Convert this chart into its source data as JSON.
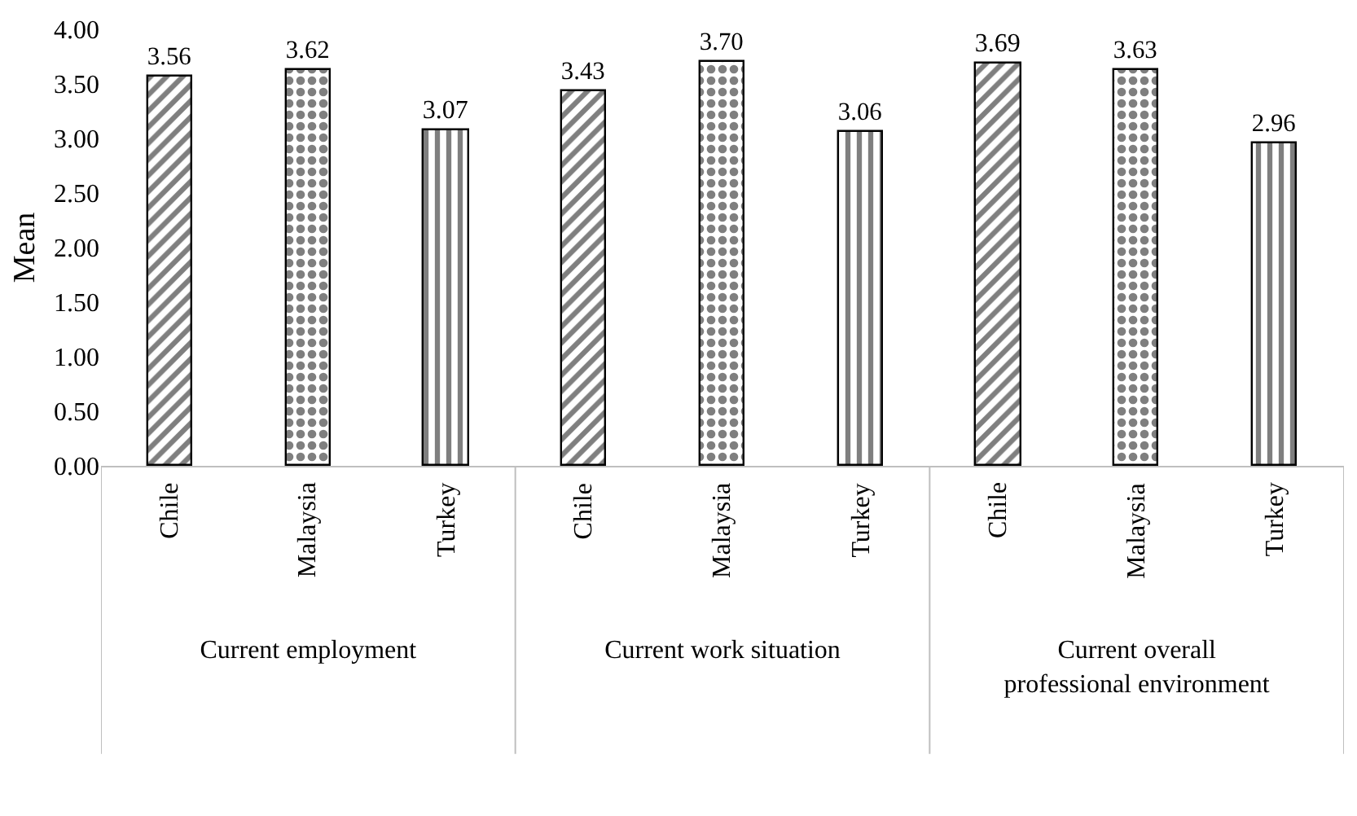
{
  "chart_data": {
    "type": "bar",
    "ylabel": "Mean",
    "categories": [
      "Current employment",
      "Current work situation",
      "Current overall professional environment"
    ],
    "series": [
      {
        "name": "Chile",
        "color": "#000000",
        "values": [
          3.56,
          3.43,
          3.69
        ],
        "value_labels": [
          "3.56",
          "3.43",
          "3.69"
        ]
      },
      {
        "name": "Malaysia",
        "color": "#000000",
        "values": [
          3.62,
          3.7,
          3.63
        ],
        "value_labels": [
          "3.62",
          "3.70",
          "3.63"
        ]
      },
      {
        "name": "Turkey",
        "color": "#000000",
        "values": [
          3.07,
          3.06,
          2.96
        ],
        "value_labels": [
          "3.07",
          "3.06",
          "2.96"
        ]
      }
    ],
    "ylim": [
      0,
      4
    ],
    "yticks": [
      {
        "value": 0,
        "label": "0.00"
      },
      {
        "value": 0.5,
        "label": "0.50"
      },
      {
        "value": 1,
        "label": "1.00"
      },
      {
        "value": 1.5,
        "label": "1.50"
      },
      {
        "value": 2,
        "label": "2.00"
      },
      {
        "value": 2.5,
        "label": "2.50"
      },
      {
        "value": 3,
        "label": "3.00"
      },
      {
        "value": 3.5,
        "label": "3.50"
      },
      {
        "value": 4,
        "label": "4.00"
      }
    ],
    "legend": false
  }
}
